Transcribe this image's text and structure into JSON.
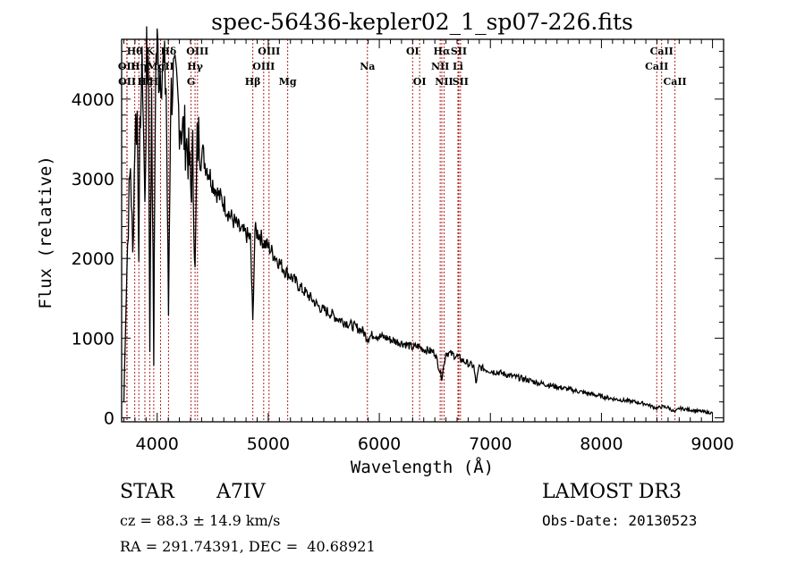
{
  "chart_data": {
    "type": "line",
    "title": "spec-56436-kepler02_1_sp07-226.fits",
    "xlabel": "Wavelength (Å)",
    "ylabel": "Flux (relative)",
    "xlim": [
      3680,
      9100
    ],
    "ylim": [
      -50,
      4750
    ],
    "grid": false,
    "x_ticks": [
      4000,
      5000,
      6000,
      7000,
      8000,
      9000
    ],
    "x_tick_labels": [
      "4000",
      "5000",
      "6000",
      "7000",
      "8000",
      "9000"
    ],
    "y_ticks": [
      0,
      1000,
      2000,
      3000,
      4000
    ],
    "y_tick_labels": [
      "0",
      "1000",
      "2000",
      "3000",
      "4000"
    ],
    "line_color": "#000000",
    "marker_color": "#b22222",
    "series": [
      {
        "name": "flux",
        "x": [
          3700,
          3720,
          3740,
          3760,
          3780,
          3800,
          3820,
          3835,
          3850,
          3870,
          3889,
          3905,
          3920,
          3934,
          3950,
          3969,
          3985,
          4000,
          4020,
          4040,
          4060,
          4080,
          4102,
          4120,
          4140,
          4160,
          4180,
          4200,
          4230,
          4260,
          4290,
          4305,
          4320,
          4341,
          4360,
          4380,
          4400,
          4430,
          4460,
          4500,
          4550,
          4600,
          4650,
          4700,
          4750,
          4800,
          4840,
          4861,
          4880,
          4920,
          4960,
          5000,
          5050,
          5100,
          5150,
          5200,
          5250,
          5300,
          5350,
          5400,
          5450,
          5500,
          5550,
          5600,
          5650,
          5700,
          5750,
          5800,
          5850,
          5893,
          5950,
          6000,
          6050,
          6100,
          6150,
          6200,
          6250,
          6300,
          6350,
          6400,
          6450,
          6500,
          6563,
          6600,
          6650,
          6700,
          6750,
          6800,
          6850,
          6870,
          6900,
          6950,
          7000,
          7100,
          7200,
          7300,
          7400,
          7500,
          7600,
          7700,
          7800,
          7900,
          8000,
          8100,
          8200,
          8300,
          8400,
          8498,
          8542,
          8600,
          8662,
          8700,
          8800,
          8900,
          9000
        ],
        "y": [
          200,
          1500,
          2500,
          3200,
          2000,
          3600,
          3800,
          2200,
          4000,
          4300,
          2600,
          4400,
          4500,
          900,
          4300,
          700,
          4400,
          4600,
          4400,
          4500,
          4300,
          4200,
          1300,
          3900,
          4300,
          4100,
          4000,
          3800,
          3600,
          3500,
          3200,
          2800,
          3300,
          1800,
          3400,
          3550,
          3400,
          3200,
          3100,
          2950,
          2800,
          2700,
          2550,
          2450,
          2350,
          2300,
          2250,
          1200,
          2350,
          2300,
          2200,
          2150,
          2050,
          1950,
          1850,
          1780,
          1700,
          1620,
          1550,
          1480,
          1400,
          1350,
          1320,
          1270,
          1230,
          1200,
          1160,
          1130,
          1090,
          1000,
          1050,
          1020,
          1010,
          980,
          960,
          940,
          920,
          880,
          900,
          860,
          840,
          820,
          500,
          820,
          800,
          770,
          720,
          680,
          650,
          430,
          640,
          610,
          590,
          560,
          520,
          490,
          450,
          420,
          390,
          360,
          330,
          300,
          270,
          240,
          220,
          200,
          175,
          120,
          140,
          130,
          70,
          120,
          100,
          80,
          60
        ]
      }
    ],
    "line_markers": [
      {
        "label": "OII",
        "wavelength": 3727,
        "row": 2
      },
      {
        "label": "OII",
        "wavelength": 3729,
        "row": 3
      },
      {
        "label": "Hθ",
        "wavelength": 3798,
        "row": 1
      },
      {
        "label": "Hη",
        "wavelength": 3835,
        "row": 2
      },
      {
        "label": "Hζ",
        "wavelength": 3889,
        "row": 3
      },
      {
        "label": "K",
        "wavelength": 3934,
        "row": 1
      },
      {
        "label": "H",
        "wavelength": 3969,
        "row": 3
      },
      {
        "label": "Hδ",
        "wavelength": 4102,
        "row": 1
      },
      {
        "label": "MgII",
        "wavelength": 4030,
        "row": 2
      },
      {
        "label": "G",
        "wavelength": 4305,
        "row": 3
      },
      {
        "label": "Hγ",
        "wavelength": 4341,
        "row": 2
      },
      {
        "label": "OIII",
        "wavelength": 4363,
        "row": 1
      },
      {
        "label": "Hβ",
        "wavelength": 4861,
        "row": 3
      },
      {
        "label": "OIII",
        "wavelength": 4959,
        "row": 2
      },
      {
        "label": "OIII",
        "wavelength": 5007,
        "row": 1
      },
      {
        "label": "Mg",
        "wavelength": 5175,
        "row": 3
      },
      {
        "label": "Na",
        "wavelength": 5893,
        "row": 2
      },
      {
        "label": "OI",
        "wavelength": 6300,
        "row": 1
      },
      {
        "label": "OI",
        "wavelength": 6363,
        "row": 3
      },
      {
        "label": "NII",
        "wavelength": 6548,
        "row": 2
      },
      {
        "label": "Hα",
        "wavelength": 6563,
        "row": 1
      },
      {
        "label": "NII",
        "wavelength": 6583,
        "row": 3
      },
      {
        "label": "Li",
        "wavelength": 6708,
        "row": 2
      },
      {
        "label": "SII",
        "wavelength": 6716,
        "row": 1
      },
      {
        "label": "SII",
        "wavelength": 6731,
        "row": 3
      },
      {
        "label": "CaII",
        "wavelength": 8498,
        "row": 2
      },
      {
        "label": "CaII",
        "wavelength": 8542,
        "row": 1
      },
      {
        "label": "CaII",
        "wavelength": 8662,
        "row": 3
      }
    ]
  },
  "info": {
    "object_class": "STAR",
    "subclass": "A7IV",
    "cz": "cz = 88.3 ± 14.9 km/s",
    "coords": "RA = 291.74391, DEC =  40.68921",
    "survey": "LAMOST DR3",
    "obs_date": "Obs-Date: 20130523"
  }
}
